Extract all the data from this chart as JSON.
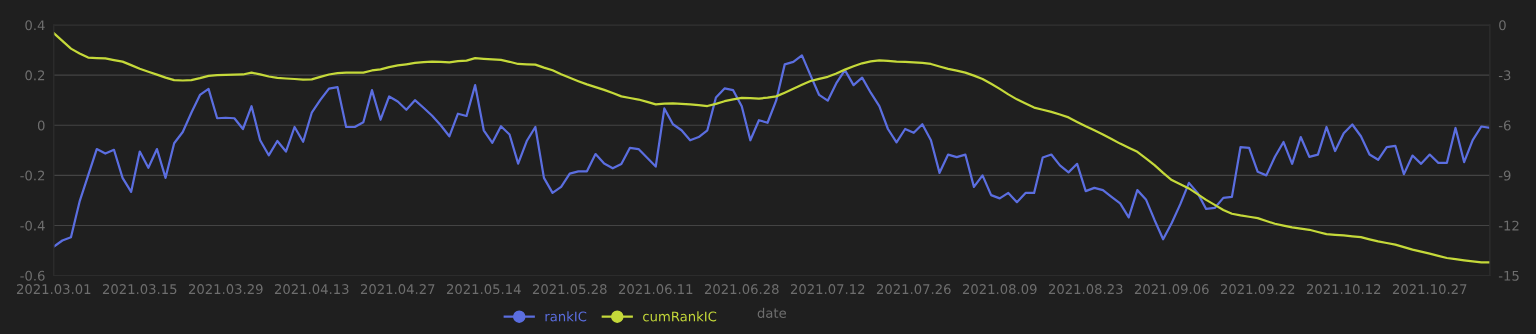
{
  "chart_data": {
    "type": "line",
    "xlabel": "date",
    "categories": [
      "2021.03.01",
      null,
      null,
      null,
      null,
      null,
      null,
      null,
      null,
      null,
      "2021.03.15",
      null,
      null,
      null,
      null,
      null,
      null,
      null,
      null,
      null,
      "2021.03.29",
      null,
      null,
      null,
      null,
      null,
      null,
      null,
      null,
      null,
      "2021.04.13",
      null,
      null,
      null,
      null,
      null,
      null,
      null,
      null,
      null,
      "2021.04.27",
      null,
      null,
      null,
      null,
      null,
      null,
      null,
      null,
      null,
      "2021.05.14",
      null,
      null,
      null,
      null,
      null,
      null,
      null,
      null,
      null,
      "2021.05.28",
      null,
      null,
      null,
      null,
      null,
      null,
      null,
      null,
      null,
      "2021.06.11",
      null,
      null,
      null,
      null,
      null,
      null,
      null,
      null,
      null,
      "2021.06.28",
      null,
      null,
      null,
      null,
      null,
      null,
      null,
      null,
      null,
      "2021.07.12",
      null,
      null,
      null,
      null,
      null,
      null,
      null,
      null,
      null,
      "2021.07.26",
      null,
      null,
      null,
      null,
      null,
      null,
      null,
      null,
      null,
      "2021.08.09",
      null,
      null,
      null,
      null,
      null,
      null,
      null,
      null,
      null,
      "2021.08.23",
      null,
      null,
      null,
      null,
      null,
      null,
      null,
      null,
      null,
      "2021.09.06",
      null,
      null,
      null,
      null,
      null,
      null,
      null,
      null,
      null,
      "2021.09.22",
      null,
      null,
      null,
      null,
      null,
      null,
      null,
      null,
      null,
      "2021.10.12",
      null,
      null,
      null,
      null,
      null,
      null,
      null,
      null,
      null,
      "2021.10.27",
      null,
      null,
      null,
      null,
      null,
      null,
      null
    ],
    "series": [
      {
        "name": "rankIC",
        "color": "#5b6ee0",
        "values": [
          -0.485,
          -0.46,
          -0.447,
          -0.305,
          -0.2,
          -0.095,
          -0.113,
          -0.098,
          -0.21,
          -0.266,
          -0.105,
          -0.17,
          -0.095,
          -0.21,
          -0.072,
          -0.027,
          0.05,
          0.121,
          0.145,
          0.028,
          0.03,
          0.028,
          -0.015,
          0.076,
          -0.06,
          -0.12,
          -0.063,
          -0.105,
          -0.007,
          -0.066,
          0.05,
          0.101,
          0.146,
          0.152,
          -0.007,
          -0.007,
          0.012,
          0.14,
          0.022,
          0.115,
          0.095,
          0.062,
          0.1,
          0.07,
          0.038,
          0,
          -0.044,
          0.046,
          0.037,
          0.16,
          -0.02,
          -0.07,
          -0.004,
          -0.037,
          -0.153,
          -0.063,
          -0.007,
          -0.21,
          -0.27,
          -0.246,
          -0.193,
          -0.184,
          -0.184,
          -0.115,
          -0.153,
          -0.172,
          -0.155,
          -0.09,
          -0.095,
          -0.13,
          -0.165,
          0.067,
          0.004,
          -0.02,
          -0.06,
          -0.047,
          -0.02,
          0.111,
          0.147,
          0.14,
          0.076,
          -0.06,
          0.02,
          0.01,
          0.098,
          0.243,
          0.253,
          0.279,
          0.199,
          0.121,
          0.098,
          0.168,
          0.22,
          0.16,
          0.19,
          0.13,
          0.076,
          -0.015,
          -0.068,
          -0.015,
          -0.03,
          0.004,
          -0.06,
          -0.19,
          -0.117,
          -0.127,
          -0.117,
          -0.246,
          -0.2,
          -0.279,
          -0.292,
          -0.27,
          -0.307,
          -0.27,
          -0.27,
          -0.129,
          -0.117,
          -0.16,
          -0.188,
          -0.154,
          -0.263,
          -0.25,
          -0.259,
          -0.286,
          -0.312,
          -0.368,
          -0.259,
          -0.296,
          -0.378,
          -0.455,
          -0.39,
          -0.315,
          -0.23,
          -0.27,
          -0.334,
          -0.33,
          -0.29,
          -0.286,
          -0.087,
          -0.09,
          -0.186,
          -0.2,
          -0.126,
          -0.067,
          -0.154,
          -0.047,
          -0.126,
          -0.117,
          -0.007,
          -0.103,
          -0.032,
          0.003,
          -0.044,
          -0.117,
          -0.138,
          -0.087,
          -0.082,
          -0.195,
          -0.121,
          -0.154,
          -0.117,
          -0.15,
          -0.15,
          -0.011,
          -0.147,
          -0.059,
          -0.005,
          -0.01
        ]
      },
      {
        "name": "cumRankIC",
        "color": "#c5d93a",
        "axis": "y2",
        "values": [
          -0.48,
          -0.95,
          -1.41,
          -1.7,
          -1.95,
          -1.98,
          -2.0,
          -2.1,
          -2.19,
          -2.4,
          -2.62,
          -2.8,
          -2.97,
          -3.15,
          -3.3,
          -3.32,
          -3.3,
          -3.18,
          -3.04,
          -3.0,
          -2.98,
          -2.97,
          -2.96,
          -2.85,
          -2.95,
          -3.08,
          -3.16,
          -3.2,
          -3.23,
          -3.27,
          -3.25,
          -3.1,
          -2.96,
          -2.88,
          -2.85,
          -2.85,
          -2.85,
          -2.72,
          -2.65,
          -2.52,
          -2.42,
          -2.35,
          -2.27,
          -2.22,
          -2.19,
          -2.21,
          -2.23,
          -2.16,
          -2.13,
          -1.98,
          -2.02,
          -2.06,
          -2.09,
          -2.2,
          -2.33,
          -2.35,
          -2.37,
          -2.55,
          -2.71,
          -2.95,
          -3.16,
          -3.36,
          -3.55,
          -3.72,
          -3.88,
          -4.07,
          -4.27,
          -4.37,
          -4.46,
          -4.6,
          -4.75,
          -4.7,
          -4.69,
          -4.72,
          -4.75,
          -4.8,
          -4.85,
          -4.72,
          -4.56,
          -4.45,
          -4.36,
          -4.38,
          -4.4,
          -4.35,
          -4.27,
          -4.05,
          -3.82,
          -3.58,
          -3.35,
          -3.22,
          -3.1,
          -2.9,
          -2.67,
          -2.47,
          -2.29,
          -2.18,
          -2.11,
          -2.15,
          -2.19,
          -2.21,
          -2.23,
          -2.27,
          -2.33,
          -2.48,
          -2.62,
          -2.73,
          -2.85,
          -3.03,
          -3.23,
          -3.52,
          -3.82,
          -4.15,
          -4.45,
          -4.7,
          -4.94,
          -5.07,
          -5.2,
          -5.36,
          -5.53,
          -5.8,
          -6.06,
          -6.3,
          -6.55,
          -6.82,
          -7.1,
          -7.35,
          -7.59,
          -7.98,
          -8.39,
          -8.85,
          -9.28,
          -9.53,
          -9.78,
          -10.12,
          -10.47,
          -10.77,
          -11.07,
          -11.3,
          -11.4,
          -11.48,
          -11.56,
          -11.73,
          -11.9,
          -12.01,
          -12.12,
          -12.19,
          -12.26,
          -12.39,
          -12.52,
          -12.56,
          -12.6,
          -12.65,
          -12.7,
          -12.83,
          -12.95,
          -13.05,
          -13.15,
          -13.3,
          -13.45,
          -13.57,
          -13.69,
          -13.82,
          -13.95,
          -14.02,
          -14.09,
          -14.15,
          -14.21,
          -14.21
        ]
      }
    ],
    "ylim": [
      -0.6,
      0.4
    ],
    "yticks": [
      -0.6,
      -0.4,
      -0.2,
      0,
      0.2,
      0.4
    ],
    "y2lim": [
      -15,
      0
    ],
    "y2ticks": [
      -15,
      -12,
      -9,
      -6,
      -3,
      0
    ],
    "grid": "y",
    "legend": "bottom",
    "marker": "none",
    "line_style": "solid"
  }
}
